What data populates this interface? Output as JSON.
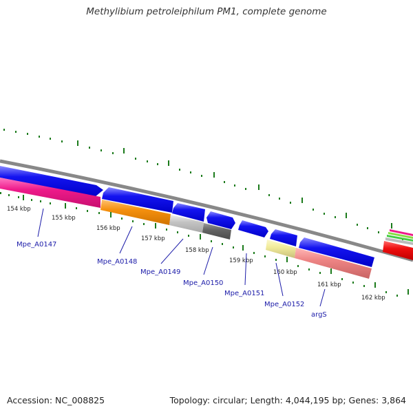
{
  "title": "Methylibium petroleiphilum PM1, complete genome",
  "footer": {
    "accession": "Accession: NC_008825",
    "stats": "Topology: circular; Length: 4,044,195 bp; Genes: 3,864"
  },
  "kbp_labels": [
    "154 kbp",
    "155 kbp",
    "156 kbp",
    "157 kbp",
    "158 kbp",
    "159 kbp",
    "160 kbp",
    "161 kbp",
    "162 kbp"
  ],
  "gene_labels": [
    "Mpe_A0147",
    "Mpe_A0148",
    "Mpe_A0149",
    "Mpe_A0150",
    "Mpe_A0151",
    "Mpe_A0152",
    "argS"
  ],
  "colors": {
    "cds_forward": "#1010ee",
    "backbone": "#888888",
    "tick": "#1a7a1a",
    "label": "#1a1aa8",
    "magenta": "#ee1a8a",
    "orange": "#f5900e",
    "light_gray": "#c4c4c4",
    "dark_gray": "#666666",
    "pale_yellow": "#f2ec9c",
    "salmon": "#ee8484",
    "red": "#ee0e0e"
  }
}
